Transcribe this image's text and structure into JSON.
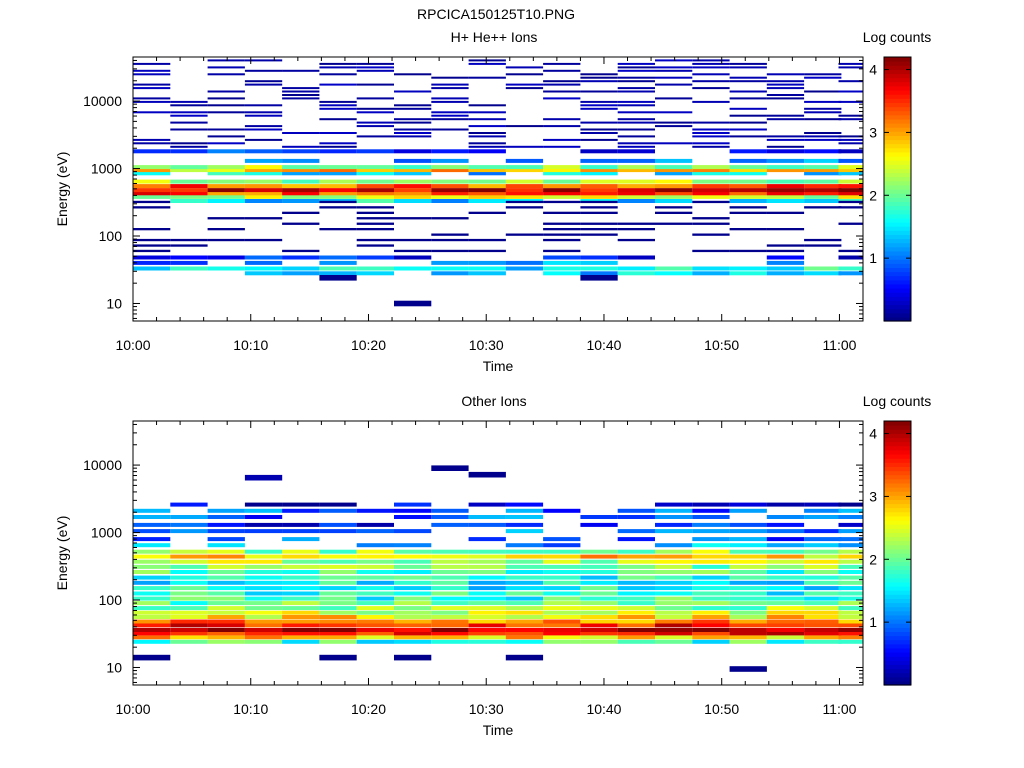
{
  "figure_title": "RPCICA150125T10.PNG",
  "chart_data": [
    {
      "type": "heatmap",
      "title": "H+ He++ Ions",
      "xlabel": "Time",
      "ylabel": "Energy (eV)",
      "colorbar_label": "Log counts",
      "xlim": [
        "10:00",
        "11:02"
      ],
      "x_ticks": [
        "10:00",
        "10:10",
        "10:20",
        "10:30",
        "10:40",
        "10:50",
        "11:00"
      ],
      "y_scale": "log",
      "ylim": [
        5.5,
        45000
      ],
      "y_ticks": [
        "10",
        "100",
        "1000",
        "10000"
      ],
      "colorbar_range": [
        0,
        4.2
      ],
      "colorbar_ticks": [
        "1",
        "2",
        "3",
        "4"
      ],
      "time_bins": [
        "10:01:35",
        "10:04:45",
        "10:07:55",
        "10:11:05",
        "10:14:15",
        "10:17:25",
        "10:20:35",
        "10:23:45",
        "10:26:55",
        "10:30:05",
        "10:33:15",
        "10:36:25",
        "10:39:35",
        "10:42:45",
        "10:45:55",
        "10:49:05",
        "10:52:15",
        "10:55:25",
        "10:58:35",
        "11:01:30"
      ],
      "profiles": [
        {
          "energy_eV": 28,
          "log_counts": 1.3
        },
        {
          "energy_eV": 33,
          "log_counts": 1.6
        },
        {
          "energy_eV": 40,
          "log_counts": 1.1
        },
        {
          "energy_eV": 48,
          "log_counts": 0.6
        },
        {
          "energy_eV": 330,
          "log_counts": 1.5
        },
        {
          "energy_eV": 380,
          "log_counts": 2.4
        },
        {
          "energy_eV": 430,
          "log_counts": 3.4
        },
        {
          "energy_eV": 480,
          "log_counts": 3.8
        },
        {
          "energy_eV": 550,
          "log_counts": 3.3
        },
        {
          "energy_eV": 640,
          "log_counts": 2.2
        },
        {
          "energy_eV": 850,
          "log_counts": 1.4
        },
        {
          "energy_eV": 950,
          "log_counts": 2.8
        },
        {
          "energy_eV": 1050,
          "log_counts": 2.2
        },
        {
          "energy_eV": 1300,
          "log_counts": 1.2
        },
        {
          "energy_eV": 1800,
          "log_counts": 0.7
        }
      ],
      "isolated_cells": [
        {
          "time_bin": "10:23:45",
          "energy_eV": 10,
          "log_counts": 0.05
        },
        {
          "time_bin": "10:17:25",
          "energy_eV": 24,
          "log_counts": 0.05
        },
        {
          "time_bin": "10:39:35",
          "energy_eV": 24,
          "log_counts": 0.05
        }
      ]
    },
    {
      "type": "heatmap",
      "title": "Other Ions",
      "xlabel": "Time",
      "ylabel": "Energy (eV)",
      "colorbar_label": "Log counts",
      "xlim": [
        "10:00",
        "11:02"
      ],
      "x_ticks": [
        "10:00",
        "10:10",
        "10:20",
        "10:30",
        "10:40",
        "10:50",
        "11:00"
      ],
      "y_scale": "log",
      "ylim": [
        5.5,
        45000
      ],
      "y_ticks": [
        "10",
        "100",
        "1000",
        "10000"
      ],
      "colorbar_range": [
        0,
        4.2
      ],
      "colorbar_ticks": [
        "1",
        "2",
        "3",
        "4"
      ],
      "time_bins": [
        "10:01:35",
        "10:04:45",
        "10:07:55",
        "10:11:05",
        "10:14:15",
        "10:17:25",
        "10:20:35",
        "10:23:45",
        "10:26:55",
        "10:30:05",
        "10:33:15",
        "10:36:25",
        "10:39:35",
        "10:42:45",
        "10:45:55",
        "10:49:05",
        "10:52:15",
        "10:55:25",
        "10:58:35",
        "11:01:30"
      ],
      "profiles": [
        {
          "energy_eV": 24,
          "log_counts": 1.8
        },
        {
          "energy_eV": 28,
          "log_counts": 2.8
        },
        {
          "energy_eV": 32,
          "log_counts": 3.7
        },
        {
          "energy_eV": 36,
          "log_counts": 4.0
        },
        {
          "energy_eV": 42,
          "log_counts": 3.6
        },
        {
          "energy_eV": 48,
          "log_counts": 3.1
        },
        {
          "energy_eV": 56,
          "log_counts": 2.7
        },
        {
          "energy_eV": 65,
          "log_counts": 2.4
        },
        {
          "energy_eV": 76,
          "log_counts": 2.2
        },
        {
          "energy_eV": 90,
          "log_counts": 2.0
        },
        {
          "energy_eV": 105,
          "log_counts": 1.8
        },
        {
          "energy_eV": 125,
          "log_counts": 1.7
        },
        {
          "energy_eV": 150,
          "log_counts": 1.6
        },
        {
          "energy_eV": 180,
          "log_counts": 1.6
        },
        {
          "energy_eV": 215,
          "log_counts": 1.7
        },
        {
          "energy_eV": 260,
          "log_counts": 1.9
        },
        {
          "energy_eV": 310,
          "log_counts": 2.1
        },
        {
          "energy_eV": 370,
          "log_counts": 2.3
        },
        {
          "energy_eV": 440,
          "log_counts": 2.8
        },
        {
          "energy_eV": 520,
          "log_counts": 2.2
        },
        {
          "energy_eV": 650,
          "log_counts": 1.2
        },
        {
          "energy_eV": 800,
          "log_counts": 0.9
        },
        {
          "energy_eV": 1050,
          "log_counts": 1.0
        },
        {
          "energy_eV": 1300,
          "log_counts": 0.6
        },
        {
          "energy_eV": 1700,
          "log_counts": 0.9
        },
        {
          "energy_eV": 2100,
          "log_counts": 0.9
        },
        {
          "energy_eV": 2600,
          "log_counts": 0.3
        }
      ],
      "isolated_cells": [
        {
          "time_bin": "10:01:35",
          "energy_eV": 14,
          "log_counts": 0.05
        },
        {
          "time_bin": "10:17:25",
          "energy_eV": 14,
          "log_counts": 0.05
        },
        {
          "time_bin": "10:23:45",
          "energy_eV": 14,
          "log_counts": 0.05
        },
        {
          "time_bin": "10:33:15",
          "energy_eV": 14,
          "log_counts": 0.05
        },
        {
          "time_bin": "10:52:15",
          "energy_eV": 9.5,
          "log_counts": 0.05
        },
        {
          "time_bin": "10:11:05",
          "energy_eV": 6500,
          "log_counts": 0.2
        },
        {
          "time_bin": "10:26:55",
          "energy_eV": 9000,
          "log_counts": 0.05
        },
        {
          "time_bin": "10:30:05",
          "energy_eV": 7200,
          "log_counts": 0.05
        }
      ]
    }
  ]
}
